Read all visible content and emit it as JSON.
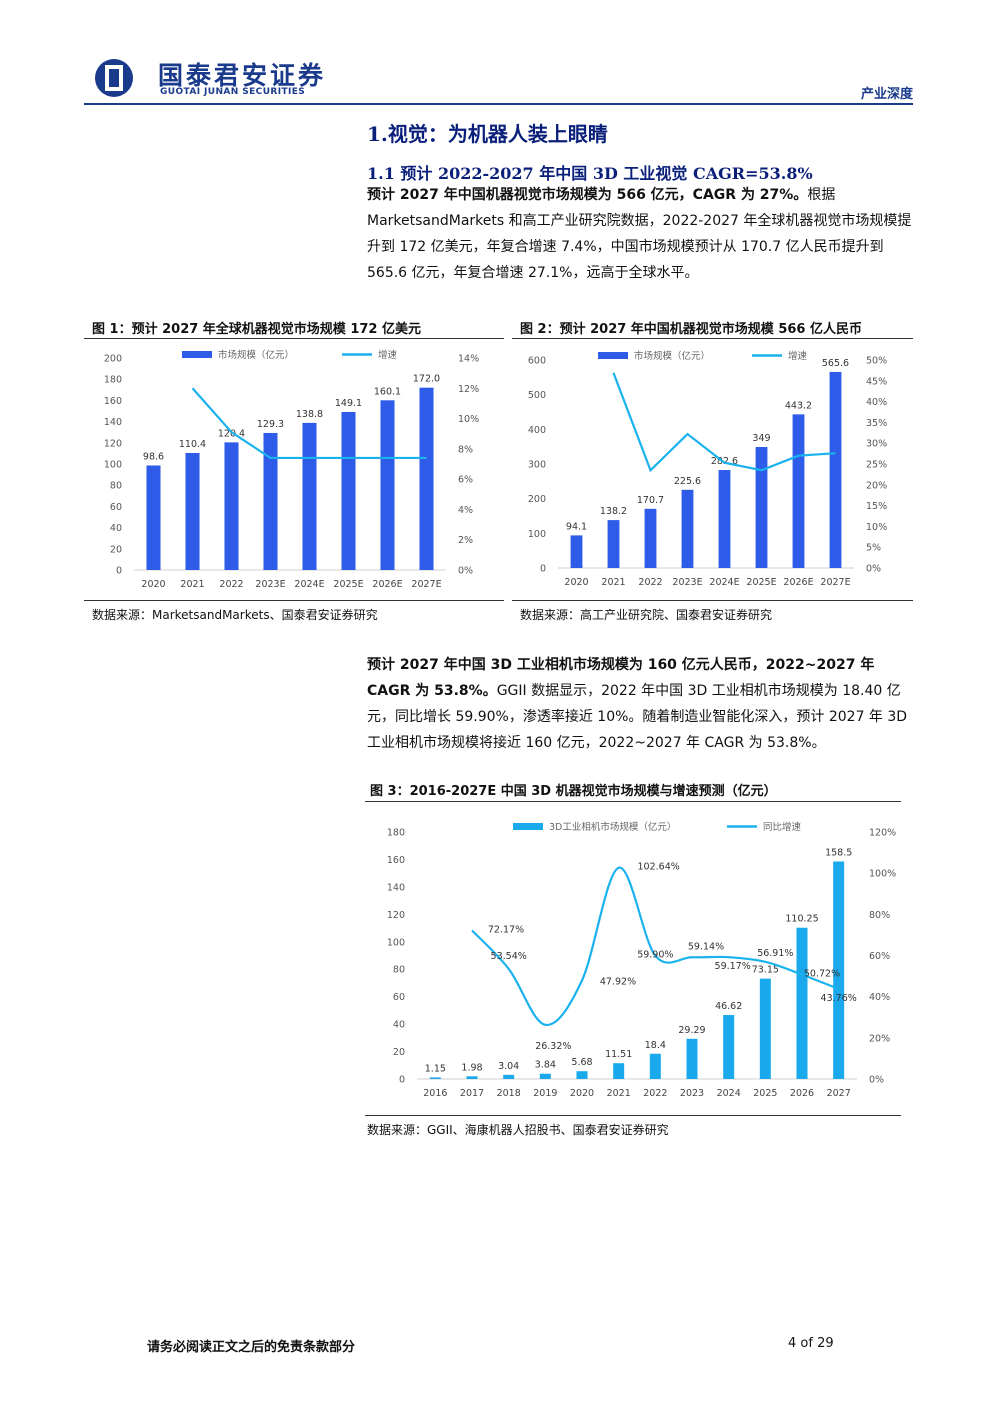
{
  "header": {
    "logo_cn": "国泰君安证券",
    "logo_en": "GUOTAI JUNAN SECURITIES",
    "doc_type": "产业深度",
    "brand_color": "#1a3a8c"
  },
  "section": {
    "h1": "1.视觉：为机器人装上眼睛",
    "h2": "1.1 预计 2022-2027 年中国 3D 工业视觉 CAGR=53.8%"
  },
  "para1": {
    "bold": "预计 2027 年中国机器视觉市场规模为 566 亿元，CAGR 为 27%。",
    "rest": "根据 MarketsandMarkets 和高工产业研究院数据，2022-2027 年全球机器视觉市场规模提升到 172 亿美元，年复合增速 7.4%，中国市场规模预计从 170.7 亿人民币提升到 565.6 亿元，年复合增速 27.1%，远高于全球水平。"
  },
  "fig1": {
    "title": "图 1：预计 2027 年全球机器视觉市场规模 172 亿美元",
    "source": "数据来源：MarketsandMarkets、国泰君安证券研究"
  },
  "fig2": {
    "title": "图 2：预计 2027 年中国机器视觉市场规模 566 亿人民币",
    "source": "数据来源：高工产业研究院、国泰君安证券研究"
  },
  "para2": {
    "bold": "预计 2027 年中国 3D 工业相机市场规模为 160 亿元人民币，2022~2027 年 CAGR 为 53.8%。",
    "rest": "GGII 数据显示，2022 年中国 3D 工业相机市场规模为 18.40 亿元，同比增长 59.90%，渗透率接近 10%。随着制造业智能化深入，预计 2027 年 3D 工业相机市场规模将接近 160 亿元，2022~2027 年 CAGR 为 53.8%。"
  },
  "fig3": {
    "title": "图 3：2016-2027E 中国 3D 机器视觉市场规模与增速预测（亿元）",
    "source": "数据来源：GGII、海康机器人招股书、国泰君安证券研究"
  },
  "footer": {
    "disclaimer": "请务必阅读正文之后的免责条款部分",
    "page": "4 of 29"
  },
  "chart_data": [
    {
      "type": "bar",
      "categories": [
        "2020",
        "2021",
        "2022",
        "2023E",
        "2024E",
        "2025E",
        "2026E",
        "2027E"
      ],
      "series": [
        {
          "name": "市场规模（亿元）",
          "type": "bar",
          "values": [
            98.6,
            110.4,
            120.4,
            129.3,
            138.8,
            149.1,
            160.1,
            172.0
          ],
          "labels": [
            "98.6",
            "110.4",
            "120.4",
            "129.3",
            "138.8",
            "149.1",
            "160.1",
            "172.0"
          ],
          "color": "#2e5be8"
        },
        {
          "name": "增速",
          "type": "line",
          "axis": "right",
          "values": [
            null,
            12.0,
            9.1,
            7.4,
            7.4,
            7.4,
            7.4,
            7.4
          ],
          "color": "#19b2ee"
        }
      ],
      "ylim": [
        0,
        200
      ],
      "yticks": [
        "0",
        "20",
        "40",
        "60",
        "80",
        "100",
        "120",
        "140",
        "160",
        "180",
        "200"
      ],
      "y2lim": [
        0,
        14
      ],
      "y2ticks": [
        "0%",
        "2%",
        "4%",
        "6%",
        "8%",
        "10%",
        "12%",
        "14%"
      ],
      "legend": "top"
    },
    {
      "type": "bar",
      "categories": [
        "2020",
        "2021",
        "2022",
        "2023E",
        "2024E",
        "2025E",
        "2026E",
        "2027E"
      ],
      "series": [
        {
          "name": "市场规模（亿元）",
          "type": "bar",
          "values": [
            94.1,
            138.2,
            170.7,
            225.6,
            282.6,
            349,
            443.2,
            565.6
          ],
          "labels": [
            "94.1",
            "138.2",
            "170.7",
            "225.6",
            "282.6",
            "349",
            "443.2",
            "565.6"
          ],
          "color": "#2e5be8"
        },
        {
          "name": "增速",
          "type": "line",
          "axis": "right",
          "values": [
            null,
            46.9,
            23.5,
            32.2,
            25.3,
            23.5,
            27.0,
            27.6
          ],
          "color": "#19b2ee"
        }
      ],
      "ylim": [
        0,
        600
      ],
      "yticks": [
        "0",
        "100",
        "200",
        "300",
        "400",
        "500",
        "600"
      ],
      "y2lim": [
        0,
        50
      ],
      "y2ticks": [
        "0%",
        "5%",
        "10%",
        "15%",
        "20%",
        "25%",
        "30%",
        "35%",
        "40%",
        "45%",
        "50%"
      ],
      "legend": "top"
    },
    {
      "type": "bar",
      "categories": [
        "2016",
        "2017",
        "2018",
        "2019",
        "2020",
        "2021",
        "2022",
        "2023",
        "2024",
        "2025",
        "2026",
        "2027"
      ],
      "series": [
        {
          "name": "3D工业相机市场规模（亿元）",
          "type": "bar",
          "values": [
            1.15,
            1.98,
            3.04,
            3.84,
            5.68,
            11.51,
            18.4,
            29.29,
            46.62,
            73.15,
            110.25,
            158.5
          ],
          "labels": [
            "1.15",
            "1.98",
            "3.04",
            "3.84",
            "5.68",
            "11.51",
            "18.4",
            "29.29",
            "46.62",
            "73.15",
            "110.25",
            "158.5"
          ],
          "color": "#1aa9ec"
        },
        {
          "name": "同比增速",
          "type": "line",
          "axis": "right",
          "values": [
            null,
            72.17,
            53.54,
            26.32,
            47.92,
            102.64,
            59.9,
            59.14,
            59.17,
            56.91,
            50.72,
            43.76
          ],
          "labels": [
            "",
            "72.17%",
            "53.54%",
            "26.32%",
            "47.92%",
            "102.64%",
            "59.90%",
            "59.14%",
            "59.17%",
            "56.91%",
            "50.72%",
            "43.76%"
          ],
          "color": "#19b2ee"
        }
      ],
      "ylim": [
        0,
        180
      ],
      "yticks": [
        "0",
        "20",
        "40",
        "60",
        "80",
        "100",
        "120",
        "140",
        "160",
        "180"
      ],
      "y2lim": [
        0,
        120
      ],
      "y2ticks": [
        "0%",
        "20%",
        "40%",
        "60%",
        "80%",
        "100%",
        "120%"
      ],
      "legend": "top"
    }
  ]
}
